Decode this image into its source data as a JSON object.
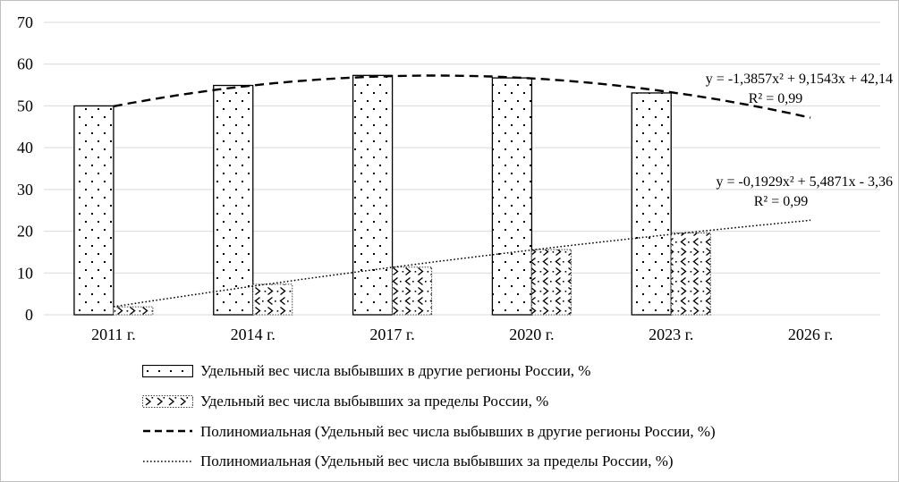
{
  "chart_data": {
    "type": "bar",
    "title": "",
    "xlabel": "",
    "ylabel": "",
    "categories": [
      "2011 г.",
      "2014 г.",
      "2017 г.",
      "2020 г.",
      "2023 г.",
      "2026 г."
    ],
    "series": [
      {
        "name": "Удельный вес числа выбывших в другие регионы России, %",
        "pattern": "dots",
        "values": [
          50,
          54.9,
          57.3,
          56.7,
          53.1,
          null
        ]
      },
      {
        "name": "Удельный вес числа выбывших за пределы России, %",
        "pattern": "chevrons",
        "values": [
          1.9,
          7.3,
          11.4,
          15.6,
          19.6,
          null
        ]
      }
    ],
    "trendlines": [
      {
        "name": "Полиномиальная (Удельный вес числа выбывших в другие регионы России, %)",
        "style": "dashed",
        "coeffs": [
          -1.3857,
          9.1543,
          42.14
        ],
        "equation": "y = -1,3857x² + 9,1543x + 42,14",
        "r2": "R² = 0,99"
      },
      {
        "name": "Полиномиальная (Удельный вес числа выбывших за пределы России, %)",
        "style": "dotted",
        "coeffs": [
          -0.1929,
          5.4871,
          -3.36
        ],
        "equation": "y = -0,1929x² + 5,4871x - 3,36",
        "r2": "R² = 0,99"
      }
    ],
    "y_axis": {
      "min": 0,
      "max": 70,
      "step": 10,
      "ticks": [
        "0",
        "10",
        "20",
        "30",
        "40",
        "50",
        "60",
        "70"
      ]
    },
    "ylim": [
      0,
      70
    ],
    "grid": true,
    "legend_position": "bottom"
  },
  "legend": {
    "items": [
      {
        "swatch": "bar-dots",
        "label": "Удельный вес числа выбывших в другие регионы России, %"
      },
      {
        "swatch": "bar-chevrons",
        "label": "Удельный вес числа выбывших за пределы России, %"
      },
      {
        "swatch": "line-dashed",
        "label": "Полиномиальная (Удельный вес числа выбывших в другие регионы России, %)"
      },
      {
        "swatch": "line-dotted",
        "label": "Полиномиальная (Удельный вес числа выбывших за пределы России, %)"
      }
    ]
  },
  "colors": {
    "ink": "#000000",
    "grid": "#d9d9d9",
    "frame_border": "#bfbfbf",
    "background": "#ffffff"
  }
}
